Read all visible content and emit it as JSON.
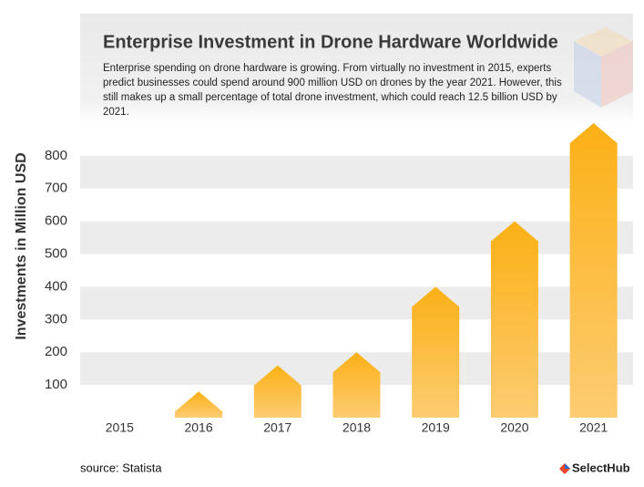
{
  "chart_data": {
    "type": "bar",
    "title": "Enterprise Investment in Drone Hardware Worldwide",
    "subtitle": "Enterprise spending on drone hardware is growing. From virtually no investment in 2015, experts predict businesses could spend around 900 million USD on drones by the year 2021. However, this still makes up a small percentage of total drone investment, which could reach 12.5 billion USD by 2021.",
    "y_label": "Investments in Million USD",
    "categories": [
      "2015",
      "2016",
      "2017",
      "2018",
      "2019",
      "2020",
      "2021"
    ],
    "values": [
      0,
      80,
      160,
      200,
      400,
      600,
      900
    ],
    "color": "url(#barg)",
    "ylim": [
      0,
      900
    ],
    "yticks": [
      100,
      200,
      300,
      400,
      500,
      600,
      700,
      800
    ],
    "banded_grid": true,
    "source": "source: Statista",
    "brand": "SelectHub"
  }
}
